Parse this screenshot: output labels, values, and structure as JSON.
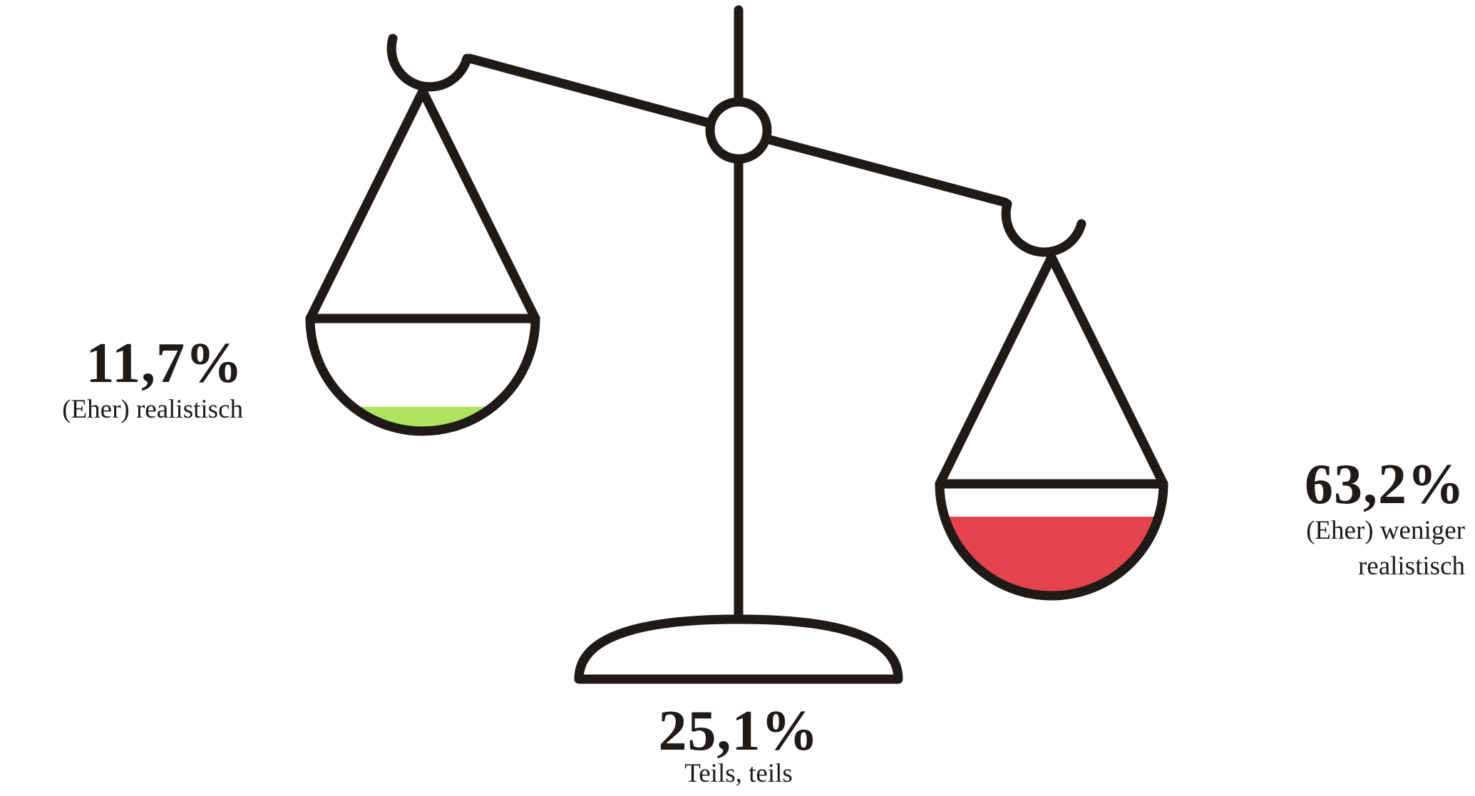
{
  "chart_data": {
    "type": "scale",
    "categories": [
      "(Eher) realistisch",
      "Teils, teils",
      "(Eher) weniger realistisch"
    ],
    "values": [
      11.7,
      25.1,
      63.2
    ],
    "value_labels": [
      "11,7%",
      "25,1%",
      "63,2%"
    ],
    "colors": [
      "#ade35f",
      "#ffffff",
      "#e5444f"
    ]
  }
}
